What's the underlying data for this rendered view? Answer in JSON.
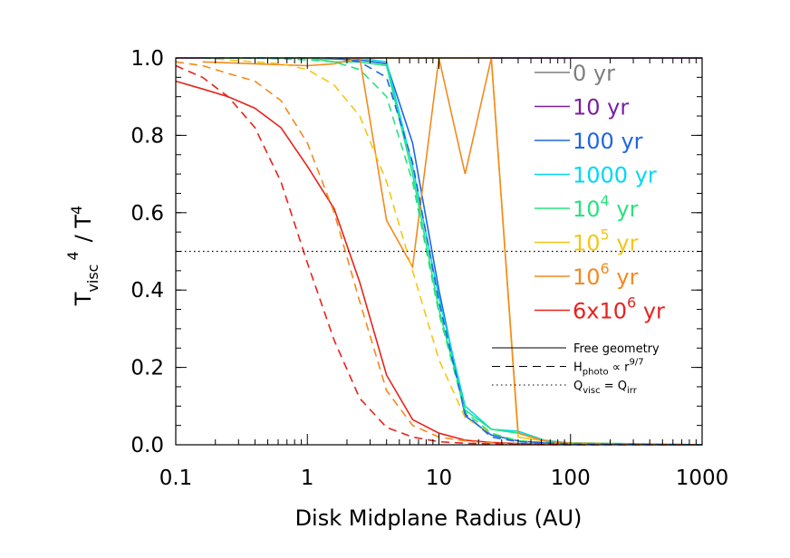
{
  "chart_data": {
    "type": "line",
    "title": "",
    "xlabel": "Disk Midplane Radius (AU)",
    "ylabel": {
      "main": "T",
      "sub": "visc",
      "sup1": "4",
      "slash": "/ T",
      "sup2": "4"
    },
    "x_scale": "log",
    "xlim": [
      0.1,
      1000
    ],
    "ylim": [
      0.0,
      1.0
    ],
    "x_ticks": [
      "0.1",
      "1",
      "10",
      "100",
      "1000"
    ],
    "y_ticks": [
      "0.0",
      "0.2",
      "0.4",
      "0.6",
      "0.8",
      "1.0"
    ],
    "grid": false,
    "legend_position": "right",
    "reference_line": {
      "y": 0.5,
      "style": "dotted"
    },
    "series": [
      {
        "label_base": "0 yr",
        "label_sup": "",
        "label_rest": "",
        "color": "#7f7f7f",
        "style": "solid",
        "x": [
          0.1,
          0.2,
          0.5,
          1,
          2,
          5,
          10,
          20,
          40,
          100,
          1000
        ],
        "y": [
          1.0,
          1.0,
          1.0,
          1.0,
          1.0,
          1.0,
          1.0,
          1.0,
          1.0,
          1.0,
          1.0
        ]
      },
      {
        "label_base": "10 yr",
        "label_sup": "",
        "label_rest": "",
        "color": "#7a1fa2",
        "style": "solid",
        "x": [
          0.1,
          0.2,
          0.5,
          1,
          2,
          5,
          10,
          20,
          40,
          100,
          1000
        ],
        "y": [
          1.0,
          1.0,
          1.0,
          1.0,
          1.0,
          1.0,
          1.0,
          1.0,
          1.0,
          1.0,
          1.0
        ]
      },
      {
        "label_base": "100 yr",
        "label_sup": "",
        "label_rest": "",
        "color": "#1f66e0",
        "style": "solid",
        "x": [
          0.16,
          0.4,
          1,
          2.5,
          4,
          6.3,
          10,
          15.8,
          25,
          40,
          63,
          100,
          1000
        ],
        "y": [
          1.0,
          1.0,
          1.0,
          0.995,
          0.985,
          0.78,
          0.4,
          0.075,
          0.025,
          0.01,
          0.005,
          0.002,
          0.0
        ]
      },
      {
        "label_base": "1000 yr",
        "label_sup": "",
        "label_rest": "",
        "color": "#00d8f0",
        "style": "solid",
        "x": [
          0.16,
          0.4,
          1,
          1.6,
          2.5,
          4,
          6.3,
          10,
          15.8,
          25,
          40,
          63,
          100,
          1000
        ],
        "y": [
          1.0,
          1.0,
          1.0,
          1.0,
          1.0,
          0.99,
          0.72,
          0.38,
          0.1,
          0.04,
          0.035,
          0.012,
          0.004,
          0.0
        ]
      },
      {
        "label_base": "10",
        "label_sup": "4",
        "label_rest": " yr",
        "color": "#28e27e",
        "style": "solid",
        "x": [
          0.16,
          0.4,
          1,
          1.6,
          2.5,
          4,
          6.3,
          10,
          15.8,
          25,
          40,
          63,
          100,
          1000
        ],
        "y": [
          1.0,
          1.0,
          1.0,
          0.99,
          0.99,
          0.98,
          0.7,
          0.35,
          0.09,
          0.04,
          0.03,
          0.01,
          0.005,
          0.0
        ]
      },
      {
        "label_base": "10",
        "label_sup": "5",
        "label_rest": " yr",
        "color": "#f4c616",
        "style": "solid",
        "x": [
          0.16,
          0.4,
          1,
          1.6,
          2.5,
          4,
          6.3,
          10,
          15.8,
          25,
          40,
          63,
          100,
          1000
        ],
        "y": [
          1.0,
          1.0,
          1.0,
          1.0,
          1.0,
          1.0,
          1.0,
          1.0,
          1.0,
          1.0,
          0.02,
          0.01,
          0.003,
          0.0
        ]
      },
      {
        "label_base": "10",
        "label_sup": "6",
        "label_rest": " yr",
        "color": "#f28a1e",
        "style": "solid",
        "x": [
          0.16,
          0.4,
          1,
          1.6,
          2.5,
          4,
          6.3,
          10,
          15.8,
          25,
          40,
          63,
          100,
          1000
        ],
        "y": [
          0.99,
          0.985,
          0.98,
          0.985,
          1.0,
          0.58,
          0.46,
          1.0,
          0.7,
          1.0,
          0.03,
          0.01,
          0.004,
          0.0
        ]
      },
      {
        "label_base": "6x10",
        "label_sup": "6",
        "label_rest": " yr",
        "color": "#e8221c",
        "style": "solid",
        "x": [
          0.1,
          0.16,
          0.25,
          0.4,
          0.63,
          1,
          1.6,
          2.5,
          4,
          6.3,
          10,
          15.8,
          25,
          40,
          100,
          1000
        ],
        "y": [
          0.94,
          0.92,
          0.9,
          0.87,
          0.82,
          0.72,
          0.61,
          0.42,
          0.18,
          0.065,
          0.03,
          0.012,
          0.006,
          0.003,
          0.001,
          0.0
        ]
      },
      {
        "label_base": "",
        "label_sup": "",
        "label_rest": "",
        "color": "#f28a1e",
        "style": "dashed",
        "x": [
          0.1,
          0.16,
          0.25,
          0.4,
          0.63,
          1,
          1.6,
          2.5,
          4,
          6.3,
          10,
          15.8,
          25,
          40,
          100,
          1000
        ],
        "y": [
          0.99,
          0.98,
          0.96,
          0.94,
          0.89,
          0.78,
          0.6,
          0.37,
          0.14,
          0.05,
          0.02,
          0.01,
          0.005,
          0.002,
          0.001,
          0.0
        ]
      },
      {
        "label_base": "",
        "label_sup": "",
        "label_rest": "",
        "color": "#e8221c",
        "style": "dashed",
        "x": [
          0.1,
          0.16,
          0.25,
          0.4,
          0.63,
          1,
          1.6,
          2.5,
          4,
          6.3,
          10,
          15.8,
          25,
          40,
          100,
          1000
        ],
        "y": [
          0.98,
          0.95,
          0.9,
          0.82,
          0.68,
          0.47,
          0.27,
          0.12,
          0.045,
          0.02,
          0.008,
          0.004,
          0.002,
          0.001,
          0.0,
          0.0
        ]
      },
      {
        "label_base": "",
        "label_sup": "",
        "label_rest": "",
        "color": "#f4c616",
        "style": "dashed",
        "x": [
          0.16,
          0.25,
          0.4,
          0.63,
          1,
          1.6,
          2.5,
          4,
          6.3,
          10,
          15.8,
          25,
          40,
          100,
          1000
        ],
        "y": [
          1.0,
          0.995,
          0.99,
          0.985,
          0.97,
          0.93,
          0.85,
          0.68,
          0.45,
          0.22,
          0.07,
          0.03,
          0.01,
          0.002,
          0.0
        ]
      },
      {
        "label_base": "",
        "label_sup": "",
        "label_rest": "",
        "color": "#28e27e",
        "style": "dashed",
        "x": [
          0.16,
          0.4,
          1,
          1.6,
          2.5,
          4,
          6.3,
          10,
          15.8,
          25,
          40,
          100,
          1000
        ],
        "y": [
          1.0,
          1.0,
          0.995,
          0.99,
          0.97,
          0.9,
          0.68,
          0.34,
          0.085,
          0.03,
          0.01,
          0.002,
          0.0
        ]
      },
      {
        "label_base": "",
        "label_sup": "",
        "label_rest": "",
        "color": "#1f66e0",
        "style": "dashed",
        "x": [
          0.16,
          0.4,
          1,
          1.6,
          2.5,
          4,
          6.3,
          10,
          15.8,
          25,
          40,
          100,
          1000
        ],
        "y": [
          1.0,
          1.0,
          1.0,
          1.0,
          0.99,
          0.95,
          0.73,
          0.37,
          0.08,
          0.02,
          0.008,
          0.002,
          0.0
        ]
      }
    ],
    "style_legend": [
      {
        "style": "solid",
        "text": "Free geometry",
        "sub": "",
        "sup": "",
        "text2": "",
        "sub2": ""
      },
      {
        "style": "dashed",
        "text": "H",
        "sub": "photo",
        "sup": "9/7",
        "text2": " ∝ r",
        "sub2": ""
      },
      {
        "style": "dotted",
        "text": "Q",
        "sub": "visc",
        "sup": "",
        "text2": " = Q",
        "sub2": "irr"
      }
    ]
  }
}
